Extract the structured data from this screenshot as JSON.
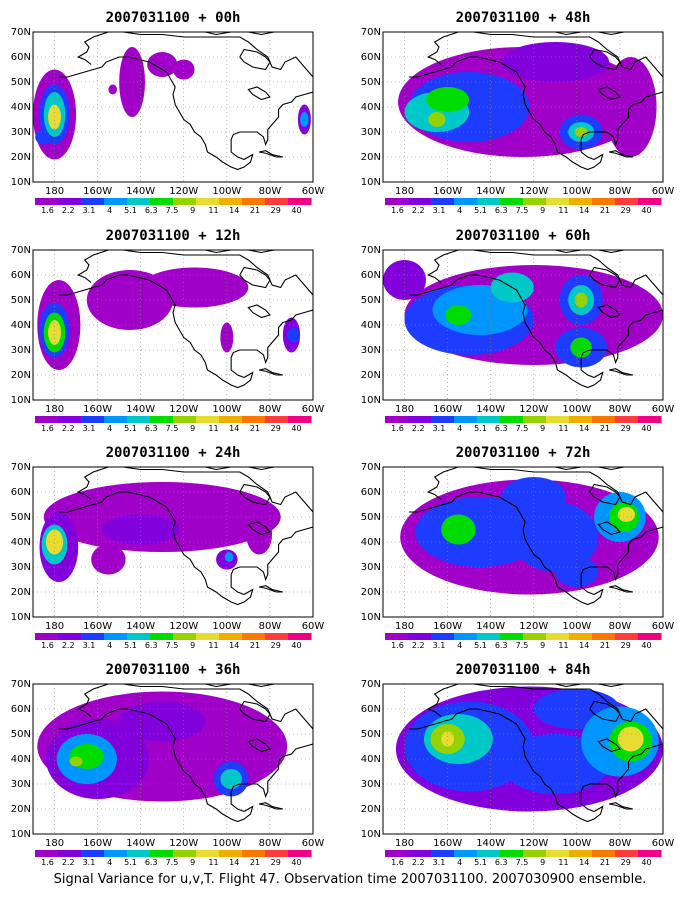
{
  "caption": "Signal Variance for u,v,T. Flight 47. Observation time 2007031100. 2007030900 ensemble.",
  "map": {
    "lat_labels": [
      "70N",
      "60N",
      "50N",
      "40N",
      "30N",
      "20N",
      "10N"
    ],
    "lon_labels": [
      "180",
      "160W",
      "140W",
      "120W",
      "100W",
      "80W",
      "60W"
    ],
    "lon_range": [
      170,
      300
    ],
    "lat_range": [
      10,
      70
    ],
    "grid": "dotted"
  },
  "colorbar": {
    "labels": [
      "1.6",
      "2.2",
      "3.1",
      "4",
      "5.1",
      "6.3",
      "7.5",
      "9",
      "11",
      "14",
      "21",
      "29",
      "40"
    ],
    "colors": [
      "#ffffff",
      "#a000c8",
      "#8200dc",
      "#1e3cff",
      "#0096ff",
      "#00c8c8",
      "#00dc00",
      "#96d200",
      "#e6dc32",
      "#f0af00",
      "#fa7800",
      "#ff3c3c",
      "#f00082"
    ]
  },
  "panels": [
    {
      "title": "2007031100 + 00h"
    },
    {
      "title": "2007031100 + 48h"
    },
    {
      "title": "2007031100 + 12h"
    },
    {
      "title": "2007031100 + 60h"
    },
    {
      "title": "2007031100 + 24h"
    },
    {
      "title": "2007031100 + 72h"
    },
    {
      "title": "2007031100 + 36h"
    },
    {
      "title": "2007031100 + 84h"
    }
  ]
}
